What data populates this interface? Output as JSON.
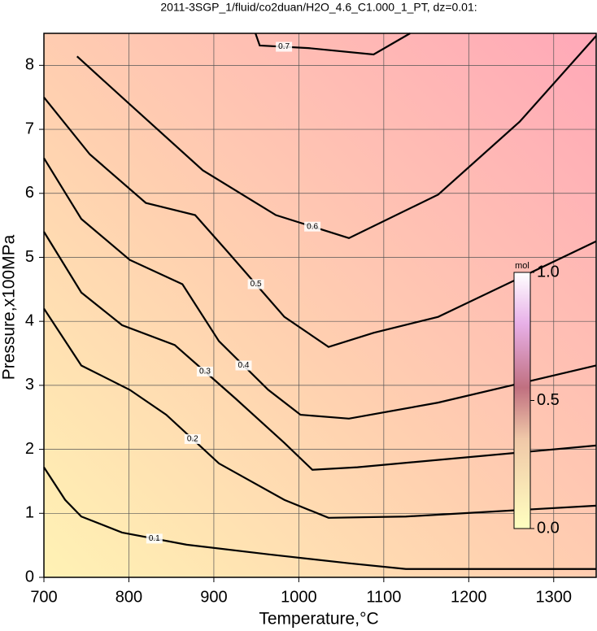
{
  "chart_data": {
    "type": "contour",
    "title": "2011-3SGP_1/fluid/co2duan/H2O_4.6_C1.000_1_PT, dz=0.01:",
    "xlabel": "Temperature,°C",
    "ylabel": "Pressure,x100MPa",
    "xlim": [
      700,
      1350
    ],
    "xticks": [
      700,
      800,
      900,
      1000,
      1100,
      1200,
      1300
    ],
    "ylim": [
      0,
      8.5
    ],
    "yticks": [
      0,
      1,
      2,
      3,
      4,
      5,
      6,
      7,
      8
    ],
    "grid": true,
    "line_color": "#000000",
    "contours": [
      {
        "level": 0.1,
        "x": [
          700,
          725,
          744,
          792,
          868,
          964,
          1059,
          1126,
          1350
        ],
        "y": [
          1.72,
          1.21,
          0.95,
          0.7,
          0.51,
          0.36,
          0.22,
          0.13,
          0.13
        ]
      },
      {
        "level": 0.2,
        "x": [
          700,
          744,
          801,
          844,
          906,
          983,
          1035,
          1126,
          1350
        ],
        "y": [
          4.2,
          3.31,
          2.93,
          2.54,
          1.78,
          1.21,
          0.93,
          0.95,
          1.12
        ]
      },
      {
        "level": 0.3,
        "x": [
          700,
          744,
          792,
          854,
          925,
          983,
          1016,
          1069,
          1350
        ],
        "y": [
          5.4,
          4.45,
          3.94,
          3.63,
          2.8,
          2.1,
          1.68,
          1.72,
          2.06
        ]
      },
      {
        "level": 0.4,
        "x": [
          700,
          744,
          801,
          863,
          906,
          964,
          1002,
          1059,
          1164,
          1350
        ],
        "y": [
          6.55,
          5.6,
          4.96,
          4.58,
          3.69,
          2.93,
          2.54,
          2.48,
          2.73,
          3.31
        ]
      },
      {
        "level": 0.5,
        "x": [
          700,
          754,
          820,
          878,
          916,
          983,
          1035,
          1088,
          1164,
          1350
        ],
        "y": [
          7.5,
          6.61,
          5.85,
          5.66,
          5.09,
          4.07,
          3.6,
          3.82,
          4.07,
          5.25
        ]
      },
      {
        "level": 0.6,
        "x": [
          739,
          792,
          887,
          973,
          1059,
          1164,
          1260,
          1350
        ],
        "y": [
          8.14,
          7.5,
          6.36,
          5.66,
          5.3,
          5.98,
          7.12,
          8.46
        ]
      },
      {
        "level": 0.7,
        "x": [
          949,
          954,
          1011,
          1088,
          1131
        ],
        "y": [
          8.5,
          8.31,
          8.27,
          8.17,
          8.5
        ]
      }
    ],
    "colorbar": {
      "label": "mol",
      "lim": [
        0,
        1
      ],
      "ticks": [
        {
          "value": 0,
          "label": "0.0"
        },
        {
          "value": 0.5,
          "label": "0.5"
        },
        {
          "value": 1,
          "label": "1.0"
        }
      ]
    }
  }
}
